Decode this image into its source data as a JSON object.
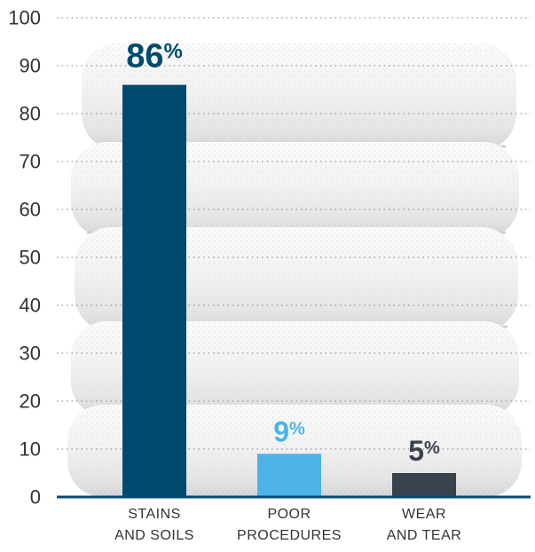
{
  "chart_data": {
    "type": "bar",
    "categories": [
      [
        "STAINS",
        "AND SOILS"
      ],
      [
        "POOR",
        "PROCEDURES"
      ],
      [
        "WEAR",
        "AND TEAR"
      ]
    ],
    "values": [
      86,
      9,
      5
    ],
    "data_labels": [
      "86",
      "9",
      "5"
    ],
    "data_label_suffix": "%",
    "bar_colors": [
      "#004a6e",
      "#4db3e6",
      "#3a4250"
    ],
    "label_colors": [
      "#004a6e",
      "#4db3e6",
      "#3a4250"
    ],
    "ylim": [
      0,
      100
    ],
    "yticks": [
      0,
      10,
      20,
      30,
      40,
      50,
      60,
      70,
      80,
      90,
      100
    ],
    "grid": true,
    "baseline_color": "#004a6e",
    "background": "stack of white towels"
  }
}
